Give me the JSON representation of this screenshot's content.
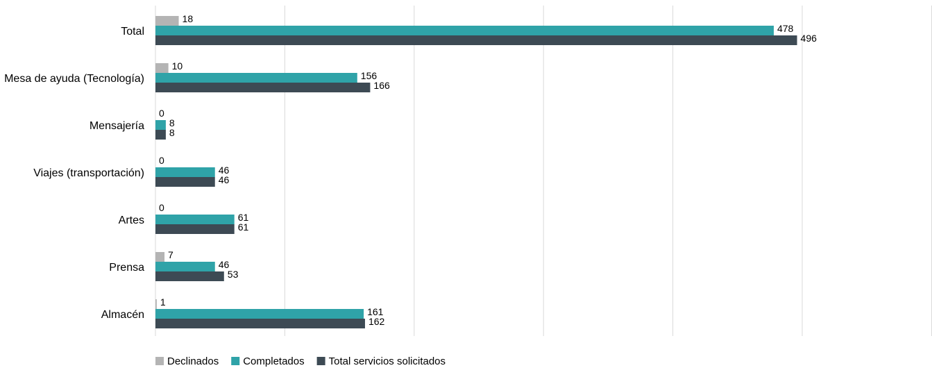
{
  "chart_data": {
    "type": "bar",
    "orientation": "horizontal",
    "categories": [
      "Total",
      "Mesa de ayuda (Tecnología)",
      "Mensajería",
      "Viajes (transportación)",
      "Artes",
      "Prensa",
      "Almacén"
    ],
    "series": [
      {
        "name": "Declinados",
        "values": [
          18,
          10,
          0,
          0,
          0,
          7,
          1
        ],
        "color": "#b4b4b4"
      },
      {
        "name": "Completados",
        "values": [
          478,
          156,
          8,
          46,
          61,
          46,
          161
        ],
        "color": "#2fa3a8"
      },
      {
        "name": "Total servicios solicitados",
        "values": [
          496,
          166,
          8,
          46,
          61,
          53,
          162
        ],
        "color": "#3d4a54"
      }
    ],
    "xlim": [
      0,
      600
    ],
    "grid": true,
    "legend_position": "bottom-left",
    "data_labels": true
  }
}
